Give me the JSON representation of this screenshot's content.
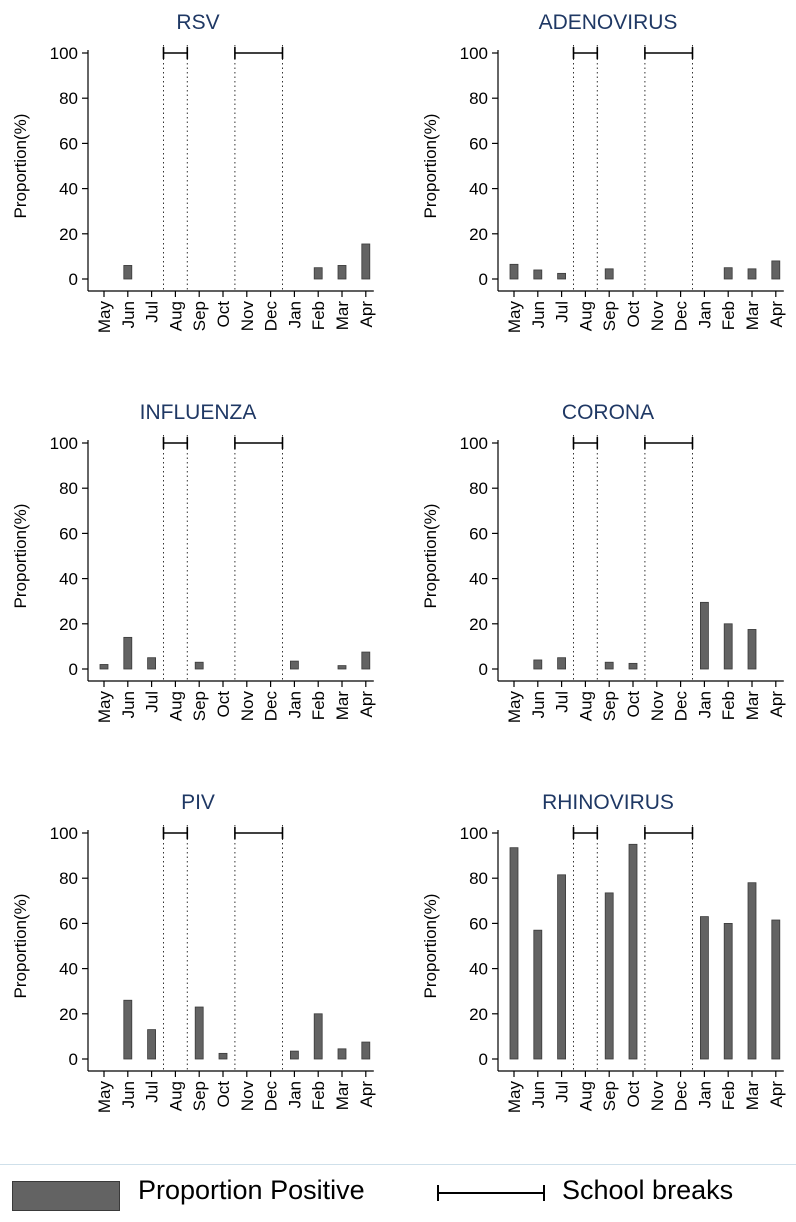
{
  "chart_data": [
    {
      "type": "bar",
      "title": "RSV",
      "ylabel": "Proportion(%)",
      "ylim": [
        0,
        100
      ],
      "yticks": [
        0,
        20,
        40,
        60,
        80,
        100
      ],
      "categories": [
        "May",
        "Jun",
        "Jul",
        "Aug",
        "Sep",
        "Oct",
        "Nov",
        "Dec",
        "Jan",
        "Feb",
        "Mar",
        "Apr"
      ],
      "values": [
        null,
        6,
        null,
        null,
        null,
        null,
        null,
        null,
        null,
        5,
        6,
        15.5
      ]
    },
    {
      "type": "bar",
      "title": "ADENOVIRUS",
      "ylabel": "Proportion(%)",
      "ylim": [
        0,
        100
      ],
      "yticks": [
        0,
        20,
        40,
        60,
        80,
        100
      ],
      "categories": [
        "May",
        "Jun",
        "Jul",
        "Aug",
        "Sep",
        "Oct",
        "Nov",
        "Dec",
        "Jan",
        "Feb",
        "Mar",
        "Apr"
      ],
      "values": [
        6.5,
        4,
        2.5,
        null,
        4.5,
        null,
        null,
        null,
        null,
        5,
        4.5,
        8
      ]
    },
    {
      "type": "bar",
      "title": "INFLUENZA",
      "ylabel": "Proportion(%)",
      "ylim": [
        0,
        100
      ],
      "yticks": [
        0,
        20,
        40,
        60,
        80,
        100
      ],
      "categories": [
        "May",
        "Jun",
        "Jul",
        "Aug",
        "Sep",
        "Oct",
        "Nov",
        "Dec",
        "Jan",
        "Feb",
        "Mar",
        "Apr"
      ],
      "values": [
        2,
        14,
        5,
        null,
        3,
        null,
        null,
        null,
        3.5,
        null,
        1.5,
        7.5
      ]
    },
    {
      "type": "bar",
      "title": "CORONA",
      "ylabel": "Proportion(%)",
      "ylim": [
        0,
        100
      ],
      "yticks": [
        0,
        20,
        40,
        60,
        80,
        100
      ],
      "categories": [
        "May",
        "Jun",
        "Jul",
        "Aug",
        "Sep",
        "Oct",
        "Nov",
        "Dec",
        "Jan",
        "Feb",
        "Mar",
        "Apr"
      ],
      "values": [
        null,
        4,
        5,
        null,
        3,
        2.5,
        null,
        null,
        29.5,
        20,
        17.5,
        null
      ]
    },
    {
      "type": "bar",
      "title": "PIV",
      "ylabel": "Proportion(%)",
      "ylim": [
        0,
        100
      ],
      "yticks": [
        0,
        20,
        40,
        60,
        80,
        100
      ],
      "categories": [
        "May",
        "Jun",
        "Jul",
        "Aug",
        "Sep",
        "Oct",
        "Nov",
        "Dec",
        "Jan",
        "Feb",
        "Mar",
        "Apr"
      ],
      "values": [
        null,
        26,
        13,
        null,
        23,
        2.5,
        null,
        null,
        3.5,
        20,
        4.5,
        7.5
      ]
    },
    {
      "type": "bar",
      "title": "RHINOVIRUS",
      "ylabel": "Proportion(%)",
      "ylim": [
        0,
        100
      ],
      "yticks": [
        0,
        20,
        40,
        60,
        80,
        100
      ],
      "categories": [
        "May",
        "Jun",
        "Jul",
        "Aug",
        "Sep",
        "Oct",
        "Nov",
        "Dec",
        "Jan",
        "Feb",
        "Mar",
        "Apr"
      ],
      "values": [
        93.5,
        57,
        81.5,
        null,
        73.5,
        95,
        null,
        null,
        63,
        60,
        78,
        61.5
      ]
    }
  ],
  "school_breaks": [
    [
      "Jul",
      "Aug"
    ],
    [
      "Oct",
      "Dec"
    ]
  ],
  "colors": {
    "bar": "#636363",
    "bar_edge": "#3a3a3a",
    "title": "#1f3864"
  },
  "legend": {
    "bar_label": "Proportion Positive",
    "break_label": "School breaks",
    "placement": "bottom"
  }
}
